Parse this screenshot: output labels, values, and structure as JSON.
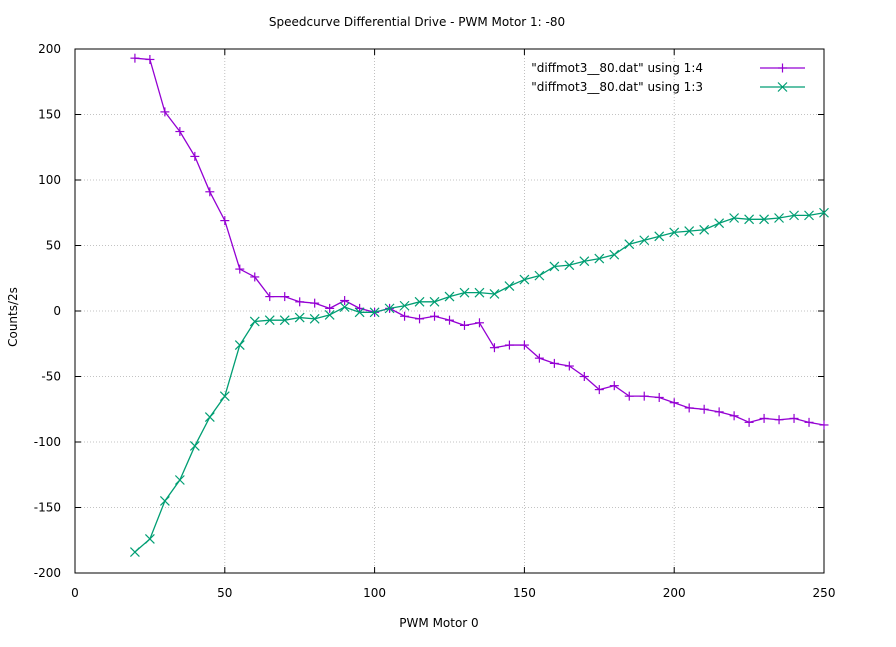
{
  "chart_data": {
    "type": "line",
    "title": "Speedcurve Differential Drive - PWM Motor 1: -80",
    "xlabel": "PWM Motor 0",
    "ylabel": "Counts/2s",
    "xlim": [
      0,
      250
    ],
    "ylim": [
      -200,
      200
    ],
    "xticks": [
      0,
      50,
      100,
      150,
      200,
      250
    ],
    "yticks": [
      -200,
      -150,
      -100,
      -50,
      0,
      50,
      100,
      150,
      200
    ],
    "grid": true,
    "legend_position": "top-right",
    "x": [
      20,
      25,
      30,
      35,
      40,
      45,
      50,
      55,
      60,
      65,
      70,
      75,
      80,
      85,
      90,
      95,
      100,
      105,
      110,
      115,
      120,
      125,
      130,
      135,
      140,
      145,
      150,
      155,
      160,
      165,
      170,
      175,
      180,
      185,
      190,
      195,
      200,
      205,
      210,
      215,
      220,
      225,
      230,
      235,
      240,
      245,
      250
    ],
    "series": [
      {
        "name": "\"diffmot3__80.dat\" using 1:4",
        "color": "#9400d3",
        "marker": "plus",
        "values": [
          193,
          192,
          152,
          137,
          118,
          91,
          69,
          32,
          26,
          11,
          11,
          7,
          6,
          2,
          8,
          2,
          -1,
          2,
          -4,
          -6,
          -4,
          -7,
          -11,
          -9,
          -28,
          -26,
          -26,
          -36,
          -40,
          -42,
          -50,
          -60,
          -57,
          -65,
          -65,
          -66,
          -70,
          -74,
          -75,
          -77,
          -80,
          -85,
          -82,
          -83,
          -82,
          -85,
          -87
        ]
      },
      {
        "name": "\"diffmot3__80.dat\" using 1:3",
        "color": "#009e73",
        "marker": "cross",
        "values": [
          -184,
          -174,
          -145,
          -129,
          -103,
          -81,
          -65,
          -26,
          -8,
          -7,
          -7,
          -5,
          -6,
          -3,
          3,
          -1,
          -1,
          2,
          4,
          7,
          7,
          11,
          14,
          14,
          13,
          19,
          24,
          27,
          34,
          35,
          38,
          40,
          43,
          51,
          54,
          57,
          60,
          61,
          62,
          67,
          71,
          70,
          70,
          71,
          73,
          73,
          75
        ]
      }
    ]
  }
}
